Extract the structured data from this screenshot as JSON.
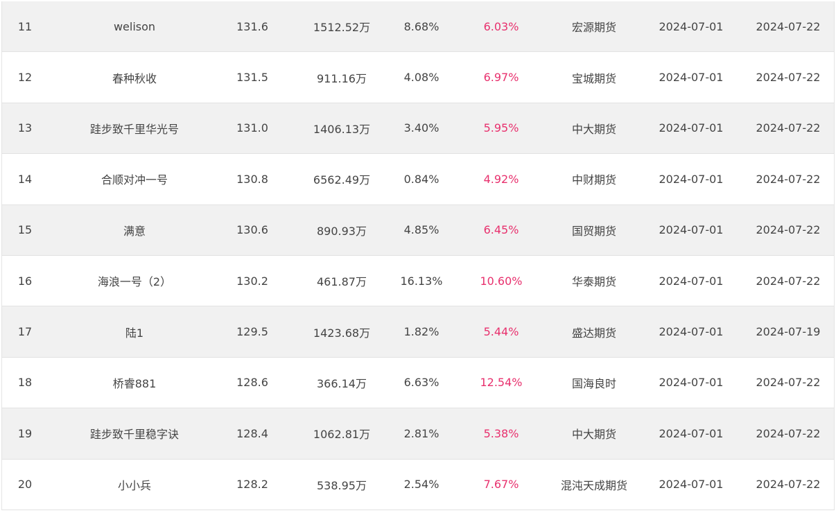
{
  "rows": [
    {
      "rank": "11",
      "name": "welison",
      "score": "131.6",
      "asset": "1512.52万",
      "drawdown": "8.68%",
      "return": "6.03%",
      "broker": "宏源期货",
      "start": "2024-07-01",
      "end": "2024-07-22"
    },
    {
      "rank": "12",
      "name": "春种秋收",
      "score": "131.5",
      "asset": "911.16万",
      "drawdown": "4.08%",
      "return": "6.97%",
      "broker": "宝城期货",
      "start": "2024-07-01",
      "end": "2024-07-22"
    },
    {
      "rank": "13",
      "name": "跬步致千里华光号",
      "score": "131.0",
      "asset": "1406.13万",
      "drawdown": "3.40%",
      "return": "5.95%",
      "broker": "中大期货",
      "start": "2024-07-01",
      "end": "2024-07-22"
    },
    {
      "rank": "14",
      "name": "合顺对冲一号",
      "score": "130.8",
      "asset": "6562.49万",
      "drawdown": "0.84%",
      "return": "4.92%",
      "broker": "中财期货",
      "start": "2024-07-01",
      "end": "2024-07-22"
    },
    {
      "rank": "15",
      "name": "满意",
      "score": "130.6",
      "asset": "890.93万",
      "drawdown": "4.85%",
      "return": "6.45%",
      "broker": "国贸期货",
      "start": "2024-07-01",
      "end": "2024-07-22"
    },
    {
      "rank": "16",
      "name": "海浪一号（2）",
      "score": "130.2",
      "asset": "461.87万",
      "drawdown": "16.13%",
      "return": "10.60%",
      "broker": "华泰期货",
      "start": "2024-07-01",
      "end": "2024-07-22"
    },
    {
      "rank": "17",
      "name": "陆1",
      "score": "129.5",
      "asset": "1423.68万",
      "drawdown": "1.82%",
      "return": "5.44%",
      "broker": "盛达期货",
      "start": "2024-07-01",
      "end": "2024-07-19"
    },
    {
      "rank": "18",
      "name": "桥睿881",
      "score": "128.6",
      "asset": "366.14万",
      "drawdown": "6.63%",
      "return": "12.54%",
      "broker": "国海良时",
      "start": "2024-07-01",
      "end": "2024-07-22"
    },
    {
      "rank": "19",
      "name": "跬步致千里稳字诀",
      "score": "128.4",
      "asset": "1062.81万",
      "drawdown": "2.81%",
      "return": "5.38%",
      "broker": "中大期货",
      "start": "2024-07-01",
      "end": "2024-07-22"
    },
    {
      "rank": "20",
      "name": "小小兵",
      "score": "128.2",
      "asset": "538.95万",
      "drawdown": "2.54%",
      "return": "7.67%",
      "broker": "混沌天成期货",
      "start": "2024-07-01",
      "end": "2024-07-22"
    }
  ],
  "colors": {
    "return_text": "#e8306d",
    "stripe": "#f1f1f1"
  }
}
